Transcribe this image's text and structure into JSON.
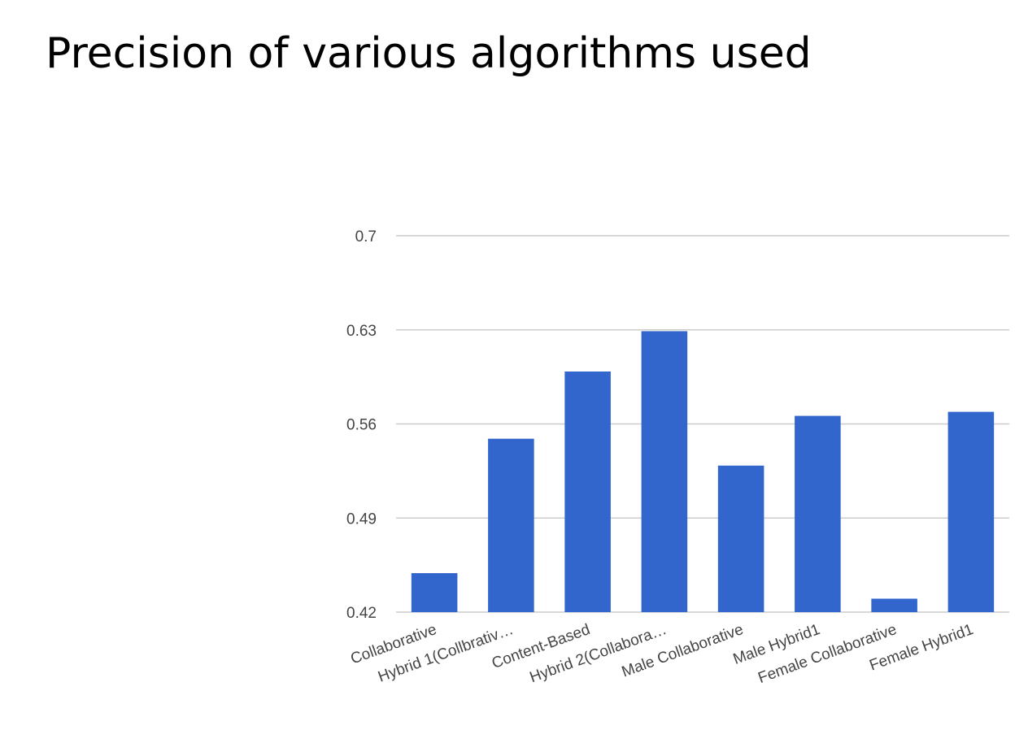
{
  "slide": {
    "title": "Precision of various algorithms used"
  },
  "chart_data": {
    "type": "bar",
    "title": "",
    "xlabel": "",
    "ylabel": "",
    "categories": [
      "Collaborative",
      "Hybrid 1(Collbrativ…",
      "Content-Based",
      "Hybrid 2(Collabora…",
      "Male Collaborative",
      "Male Hybrid1",
      "Female Collaborative",
      "Female Hybrid1"
    ],
    "values": [
      0.449,
      0.549,
      0.599,
      0.629,
      0.529,
      0.566,
      0.43,
      0.569
    ],
    "ylim": [
      0.42,
      0.7
    ],
    "yticks": [
      "0.42",
      "0.49",
      "0.56",
      "0.63",
      "0.7"
    ],
    "grid": true,
    "legend": "none",
    "bar_color": "#3366cc",
    "grid_color": "#cccccc"
  }
}
